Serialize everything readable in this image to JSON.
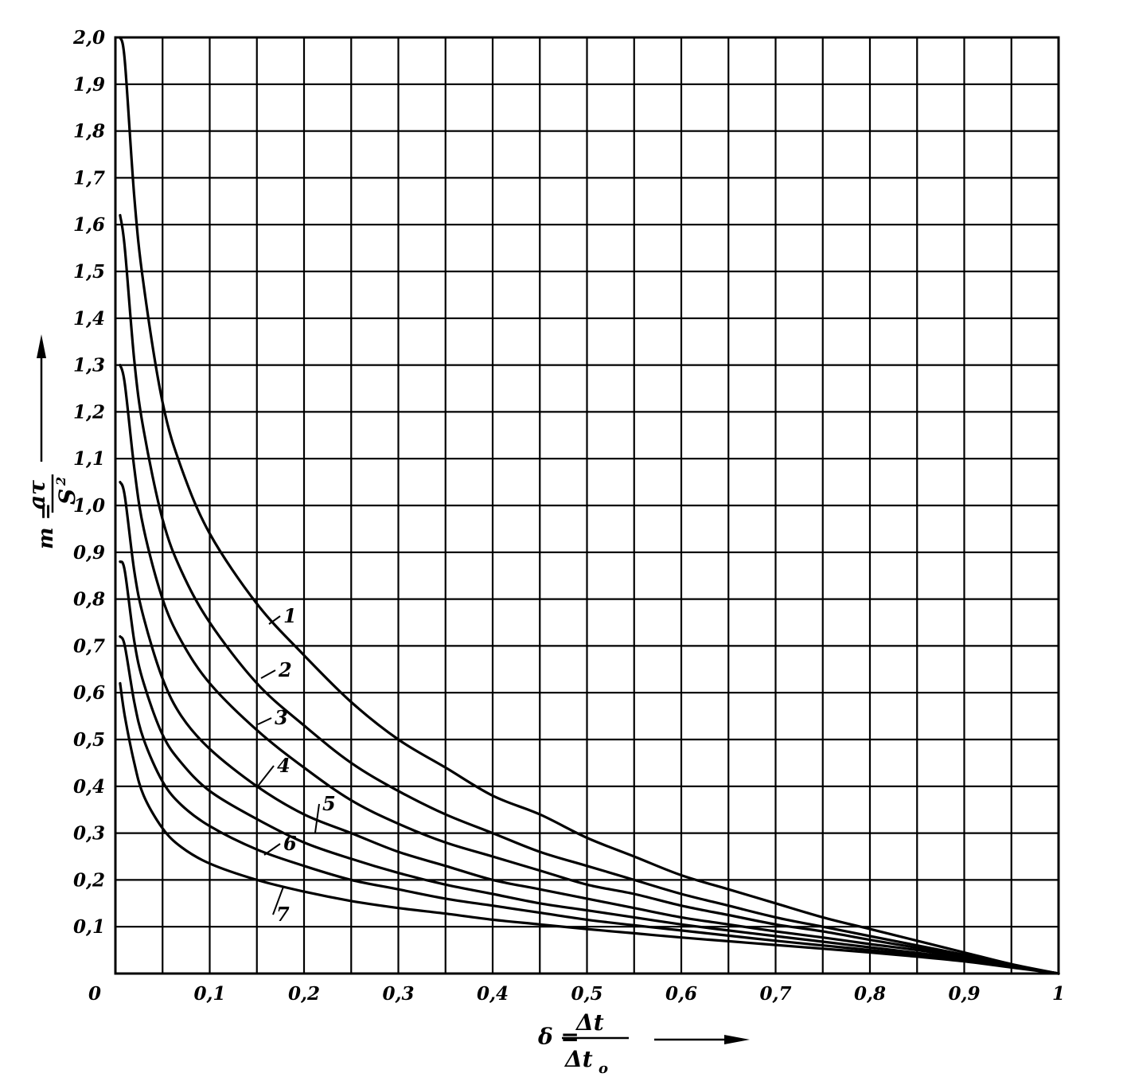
{
  "chart_data": {
    "type": "line",
    "xlim": [
      0,
      1
    ],
    "ylim": [
      0,
      2.0
    ],
    "grid": true,
    "x_tick_labels": [
      "0",
      "0,1",
      "0,2",
      "0,3",
      "0,4",
      "0,5",
      "0,6",
      "0,7",
      "0,8",
      "0,9",
      "1"
    ],
    "y_tick_labels": [
      "0",
      "0,1",
      "0,2",
      "0,3",
      "0,4",
      "0,5",
      "0,6",
      "0,7",
      "0,8",
      "0,9",
      "1,0",
      "1,1",
      "1,2",
      "1,3",
      "1,4",
      "1,5",
      "1,6",
      "1,7",
      "1,8",
      "1,9",
      "2,0"
    ],
    "xlabel": {
      "prefix": "δ =",
      "numerator": "Δt",
      "denominator": "Δt",
      "denominator_subscript": "o"
    },
    "ylabel": {
      "prefix": "m =",
      "numerator": "aτ",
      "denominator": "S",
      "denominator_superscript": "2"
    },
    "series": [
      {
        "name": "1",
        "x": [
          0.005,
          0.01,
          0.02,
          0.03,
          0.05,
          0.07,
          0.1,
          0.15,
          0.2,
          0.25,
          0.3,
          0.35,
          0.4,
          0.45,
          0.5,
          0.55,
          0.6,
          0.65,
          0.7,
          0.75,
          0.8,
          0.85,
          0.9,
          0.95,
          1.0
        ],
        "y": [
          2.0,
          1.95,
          1.66,
          1.47,
          1.22,
          1.08,
          0.94,
          0.79,
          0.68,
          0.58,
          0.5,
          0.44,
          0.38,
          0.34,
          0.29,
          0.25,
          0.21,
          0.18,
          0.15,
          0.12,
          0.095,
          0.07,
          0.045,
          0.02,
          0.0
        ]
      },
      {
        "name": "2",
        "x": [
          0.005,
          0.01,
          0.02,
          0.03,
          0.05,
          0.07,
          0.1,
          0.15,
          0.2,
          0.25,
          0.3,
          0.35,
          0.4,
          0.45,
          0.5,
          0.55,
          0.6,
          0.65,
          0.7,
          0.75,
          0.8,
          0.85,
          0.9,
          0.95,
          1.0
        ],
        "y": [
          1.62,
          1.55,
          1.31,
          1.16,
          0.97,
          0.86,
          0.75,
          0.62,
          0.53,
          0.45,
          0.39,
          0.34,
          0.3,
          0.26,
          0.23,
          0.2,
          0.17,
          0.145,
          0.12,
          0.1,
          0.08,
          0.06,
          0.04,
          0.018,
          0.0
        ]
      },
      {
        "name": "3",
        "x": [
          0.005,
          0.01,
          0.02,
          0.03,
          0.05,
          0.07,
          0.1,
          0.15,
          0.2,
          0.25,
          0.3,
          0.35,
          0.4,
          0.45,
          0.5,
          0.55,
          0.6,
          0.65,
          0.7,
          0.75,
          0.8,
          0.85,
          0.9,
          0.95,
          1.0
        ],
        "y": [
          1.3,
          1.26,
          1.08,
          0.95,
          0.8,
          0.71,
          0.62,
          0.52,
          0.44,
          0.37,
          0.32,
          0.28,
          0.25,
          0.22,
          0.19,
          0.17,
          0.145,
          0.125,
          0.105,
          0.09,
          0.072,
          0.055,
          0.037,
          0.017,
          0.0
        ]
      },
      {
        "name": "4",
        "x": [
          0.005,
          0.01,
          0.02,
          0.03,
          0.05,
          0.07,
          0.1,
          0.15,
          0.2,
          0.25,
          0.3,
          0.35,
          0.4,
          0.45,
          0.5,
          0.55,
          0.6,
          0.65,
          0.7,
          0.75,
          0.8,
          0.85,
          0.9,
          0.95,
          1.0
        ],
        "y": [
          1.05,
          1.02,
          0.86,
          0.76,
          0.63,
          0.55,
          0.48,
          0.4,
          0.34,
          0.3,
          0.26,
          0.23,
          0.2,
          0.18,
          0.16,
          0.14,
          0.12,
          0.105,
          0.09,
          0.077,
          0.063,
          0.05,
          0.034,
          0.016,
          0.0
        ]
      },
      {
        "name": "5",
        "x": [
          0.005,
          0.01,
          0.02,
          0.03,
          0.05,
          0.07,
          0.1,
          0.15,
          0.2,
          0.25,
          0.3,
          0.35,
          0.4,
          0.45,
          0.5,
          0.55,
          0.6,
          0.65,
          0.7,
          0.75,
          0.8,
          0.85,
          0.9,
          0.95,
          1.0
        ],
        "y": [
          0.88,
          0.86,
          0.71,
          0.62,
          0.51,
          0.45,
          0.39,
          0.33,
          0.28,
          0.245,
          0.215,
          0.19,
          0.17,
          0.15,
          0.135,
          0.12,
          0.105,
          0.092,
          0.08,
          0.068,
          0.056,
          0.044,
          0.031,
          0.015,
          0.0
        ]
      },
      {
        "name": "6",
        "x": [
          0.005,
          0.01,
          0.02,
          0.03,
          0.05,
          0.07,
          0.1,
          0.15,
          0.2,
          0.25,
          0.3,
          0.35,
          0.4,
          0.45,
          0.5,
          0.55,
          0.6,
          0.65,
          0.7,
          0.75,
          0.8,
          0.85,
          0.9,
          0.95,
          1.0
        ],
        "y": [
          0.72,
          0.7,
          0.58,
          0.5,
          0.41,
          0.36,
          0.315,
          0.265,
          0.23,
          0.2,
          0.18,
          0.16,
          0.145,
          0.13,
          0.115,
          0.103,
          0.092,
          0.081,
          0.07,
          0.06,
          0.05,
          0.04,
          0.028,
          0.014,
          0.0
        ]
      },
      {
        "name": "7",
        "x": [
          0.005,
          0.01,
          0.02,
          0.03,
          0.05,
          0.07,
          0.1,
          0.15,
          0.2,
          0.25,
          0.3,
          0.35,
          0.4,
          0.45,
          0.5,
          0.55,
          0.6,
          0.65,
          0.7,
          0.75,
          0.8,
          0.85,
          0.9,
          0.95,
          1.0
        ],
        "y": [
          0.62,
          0.55,
          0.45,
          0.38,
          0.31,
          0.27,
          0.235,
          0.2,
          0.175,
          0.155,
          0.14,
          0.128,
          0.115,
          0.105,
          0.095,
          0.086,
          0.077,
          0.069,
          0.061,
          0.053,
          0.045,
          0.036,
          0.026,
          0.013,
          0.0
        ]
      }
    ]
  }
}
